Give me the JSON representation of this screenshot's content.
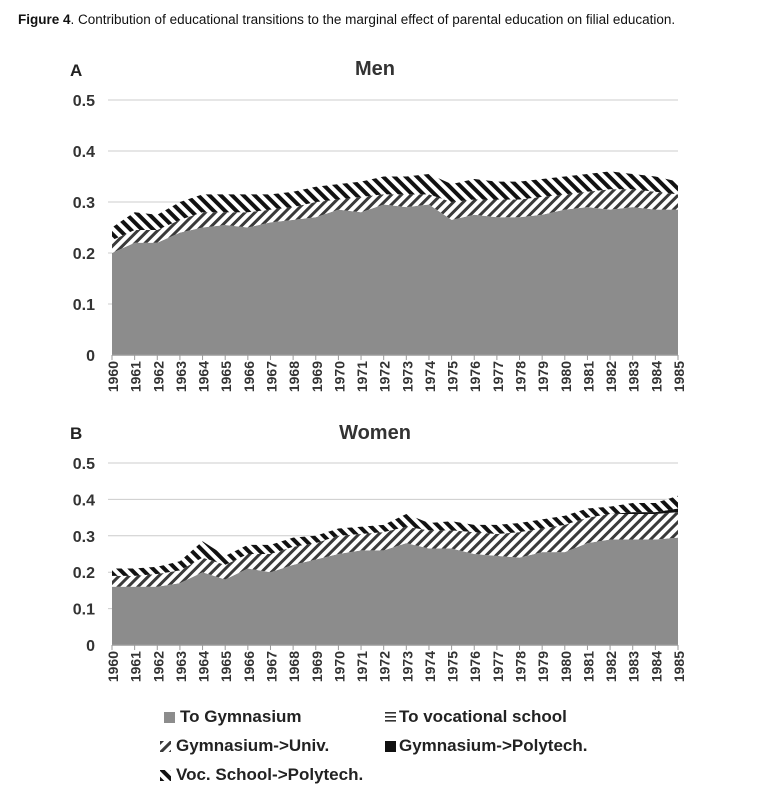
{
  "caption": {
    "label": "Figure 4",
    "text": ". Contribution of educational transitions to the marginal effect of parental education on filial education."
  },
  "colors": {
    "gymnasium": "#8c8c8c",
    "polytech": "#111111",
    "hatch": "#333333",
    "grid": "#cccccc"
  },
  "legend": [
    {
      "key": "gym",
      "label": "To Gymnasium",
      "icon": "solid-gray-square"
    },
    {
      "key": "voc",
      "label": "To vocational school",
      "icon": "horizontal-stripes"
    },
    {
      "key": "univ",
      "label": "Gymnasium->Univ.",
      "icon": "diagonal-stripes"
    },
    {
      "key": "poly",
      "label": "Gymnasium->Polytech.",
      "icon": "solid-black-square"
    },
    {
      "key": "vocpoly",
      "label": "Voc. School->Polytech.",
      "icon": "dashed-diagonal"
    }
  ],
  "chart_data": [
    {
      "type": "area",
      "stacked": true,
      "panel_letter": "A",
      "title": "Men",
      "xlabel": "",
      "ylabel": "",
      "ylim": [
        0,
        0.5
      ],
      "yticks": [
        "0",
        "0.1",
        "0.2",
        "0.3",
        "0.4",
        "0.5"
      ],
      "categories": [
        "1960",
        "1961",
        "1962",
        "1963",
        "1964",
        "1965",
        "1966",
        "1967",
        "1968",
        "1969",
        "1970",
        "1971",
        "1972",
        "1973",
        "1974",
        "1975",
        "1976",
        "1977",
        "1978",
        "1979",
        "1980",
        "1981",
        "1982",
        "1983",
        "1984",
        "1985"
      ],
      "series": [
        {
          "name": "To Gymnasium",
          "values": [
            0.2,
            0.22,
            0.22,
            0.24,
            0.25,
            0.255,
            0.25,
            0.26,
            0.265,
            0.27,
            0.285,
            0.28,
            0.295,
            0.29,
            0.295,
            0.265,
            0.275,
            0.27,
            0.27,
            0.275,
            0.285,
            0.29,
            0.285,
            0.29,
            0.285,
            0.285
          ]
        },
        {
          "name": "To vocational school",
          "values": [
            0,
            0,
            0,
            0,
            0,
            0,
            0,
            0,
            0,
            0,
            0,
            0,
            0,
            0,
            0,
            0,
            0,
            0,
            0,
            0,
            0,
            0,
            0,
            0,
            0,
            0
          ]
        },
        {
          "name": "Gymnasium->Univ.",
          "values": [
            0.025,
            0.025,
            0.025,
            0.025,
            0.03,
            0.025,
            0.03,
            0.025,
            0.025,
            0.03,
            0.02,
            0.03,
            0.02,
            0.025,
            0.02,
            0.035,
            0.03,
            0.035,
            0.035,
            0.035,
            0.03,
            0.03,
            0.04,
            0.035,
            0.035,
            0.03
          ]
        },
        {
          "name": "Gymnasium->Polytech.",
          "values": [
            0,
            0,
            0,
            0,
            0,
            0,
            0,
            0,
            0,
            0,
            0,
            0,
            0,
            0,
            0,
            0,
            0,
            0,
            0,
            0,
            0,
            0,
            0,
            0,
            0,
            0
          ]
        },
        {
          "name": "Voc. School->Polytech.",
          "values": [
            0.025,
            0.035,
            0.03,
            0.035,
            0.035,
            0.035,
            0.035,
            0.03,
            0.03,
            0.03,
            0.03,
            0.03,
            0.035,
            0.035,
            0.04,
            0.035,
            0.04,
            0.035,
            0.035,
            0.035,
            0.035,
            0.035,
            0.035,
            0.03,
            0.03,
            0.025
          ]
        }
      ]
    },
    {
      "type": "area",
      "stacked": true,
      "panel_letter": "B",
      "title": "Women",
      "xlabel": "",
      "ylabel": "",
      "ylim": [
        0,
        0.5
      ],
      "yticks": [
        "0",
        "0.1",
        "0.2",
        "0.3",
        "0.4",
        "0.5"
      ],
      "categories": [
        "1960",
        "1961",
        "1962",
        "1963",
        "1964",
        "1965",
        "1966",
        "1967",
        "1968",
        "1969",
        "1970",
        "1971",
        "1972",
        "1973",
        "1974",
        "1975",
        "1976",
        "1977",
        "1978",
        "1979",
        "1980",
        "1981",
        "1982",
        "1983",
        "1984",
        "1985"
      ],
      "series": [
        {
          "name": "To Gymnasium",
          "values": [
            0.16,
            0.16,
            0.16,
            0.17,
            0.2,
            0.18,
            0.21,
            0.2,
            0.22,
            0.235,
            0.25,
            0.26,
            0.26,
            0.28,
            0.265,
            0.265,
            0.25,
            0.245,
            0.24,
            0.255,
            0.255,
            0.28,
            0.29,
            0.29,
            0.29,
            0.295
          ]
        },
        {
          "name": "To vocational school",
          "values": [
            0,
            0,
            0,
            0,
            0,
            0,
            0,
            0,
            0,
            0,
            0,
            0,
            0,
            0,
            0,
            0,
            0,
            0,
            0,
            0,
            0,
            0,
            0,
            0,
            0,
            0
          ]
        },
        {
          "name": "Gymnasium->Univ.",
          "values": [
            0.03,
            0.03,
            0.035,
            0.035,
            0.04,
            0.04,
            0.04,
            0.05,
            0.05,
            0.045,
            0.05,
            0.045,
            0.05,
            0.045,
            0.05,
            0.05,
            0.06,
            0.06,
            0.07,
            0.065,
            0.075,
            0.07,
            0.07,
            0.07,
            0.07,
            0.07
          ]
        },
        {
          "name": "Gymnasium->Polytech.",
          "values": [
            0,
            0,
            0,
            0,
            0,
            0,
            0,
            0,
            0,
            0,
            0,
            0,
            0,
            0,
            0,
            0,
            0,
            0,
            0,
            0,
            0,
            0,
            0,
            0.005,
            0.005,
            0.01
          ]
        },
        {
          "name": "Voc. School->Polytech.",
          "values": [
            0.02,
            0.02,
            0.02,
            0.025,
            0.045,
            0.025,
            0.025,
            0.025,
            0.025,
            0.02,
            0.02,
            0.02,
            0.02,
            0.035,
            0.02,
            0.025,
            0.02,
            0.025,
            0.025,
            0.025,
            0.025,
            0.025,
            0.02,
            0.025,
            0.025,
            0.035
          ]
        }
      ]
    }
  ]
}
